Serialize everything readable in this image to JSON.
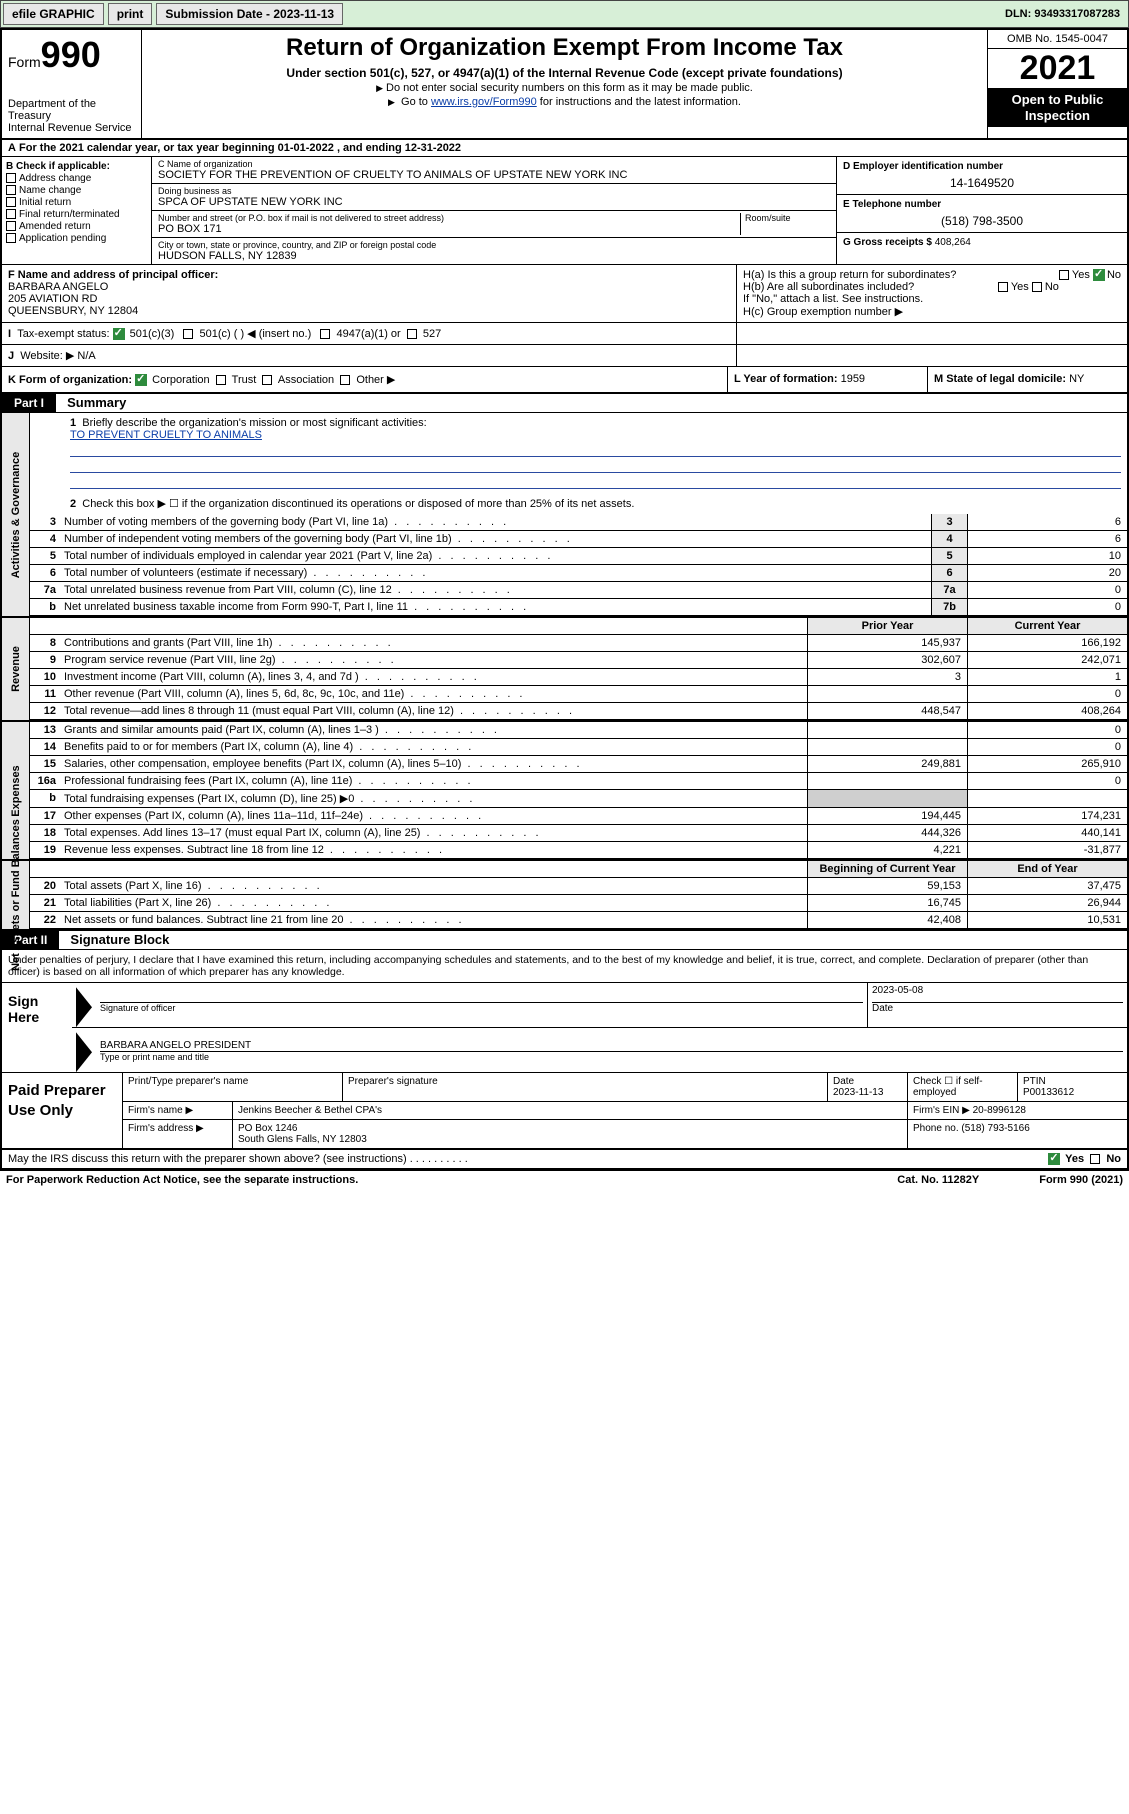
{
  "topbar": {
    "efile": "efile GRAPHIC",
    "print": "print",
    "submission_label": "Submission Date - 2023-11-13",
    "dln": "DLN: 93493317087283"
  },
  "header": {
    "form_label": "Form",
    "form_number": "990",
    "title": "Return of Organization Exempt From Income Tax",
    "subtitle": "Under section 501(c), 527, or 4947(a)(1) of the Internal Revenue Code (except private foundations)",
    "note1": "Do not enter social security numbers on this form as it may be made public.",
    "note2_pre": "Go to ",
    "note2_link": "www.irs.gov/Form990",
    "note2_post": " for instructions and the latest information.",
    "dept": "Department of the Treasury",
    "irs": "Internal Revenue Service",
    "omb": "OMB No. 1545-0047",
    "year": "2021",
    "open_public": "Open to Public Inspection"
  },
  "rowA": "For the 2021 calendar year, or tax year beginning 01-01-2022   , and ending 12-31-2022",
  "sectionB": {
    "label": "B Check if applicable:",
    "items": [
      "Address change",
      "Name change",
      "Initial return",
      "Final return/terminated",
      "Amended return",
      "Application pending"
    ]
  },
  "sectionC": {
    "name_lbl": "C Name of organization",
    "name": "SOCIETY FOR THE PREVENTION OF CRUELTY TO ANIMALS OF UPSTATE NEW YORK INC",
    "dba_lbl": "Doing business as",
    "dba": "SPCA OF UPSTATE NEW YORK INC",
    "street_lbl": "Number and street (or P.O. box if mail is not delivered to street address)",
    "room_lbl": "Room/suite",
    "street": "PO BOX 171",
    "city_lbl": "City or town, state or province, country, and ZIP or foreign postal code",
    "city": "HUDSON FALLS, NY  12839"
  },
  "sectionD": {
    "lbl": "D Employer identification number",
    "val": "14-1649520"
  },
  "sectionE": {
    "lbl": "E Telephone number",
    "val": "(518) 798-3500"
  },
  "sectionG": {
    "lbl": "G Gross receipts $",
    "val": "408,264"
  },
  "sectionF": {
    "lbl": "F Name and address of principal officer:",
    "name": "BARBARA ANGELO",
    "street": "205 AVIATION RD",
    "city": "QUEENSBURY, NY  12804"
  },
  "sectionH": {
    "a": "H(a)  Is this a group return for subordinates?",
    "b": "H(b)  Are all subordinates included?",
    "note": "If \"No,\" attach a list. See instructions.",
    "c": "H(c)  Group exemption number ▶",
    "yes": "Yes",
    "no": "No"
  },
  "rowI": {
    "lbl": "Tax-exempt status:",
    "opts": [
      "501(c)(3)",
      "501(c) (   ) ◀ (insert no.)",
      "4947(a)(1) or",
      "527"
    ]
  },
  "rowJ": {
    "lbl": "Website: ▶",
    "val": "N/A"
  },
  "rowK": {
    "lbl": "K Form of organization:",
    "opts": [
      "Corporation",
      "Trust",
      "Association",
      "Other ▶"
    ]
  },
  "rowL": {
    "lbl": "L Year of formation:",
    "val": "1959"
  },
  "rowM": {
    "lbl": "M State of legal domicile:",
    "val": "NY"
  },
  "part1": {
    "hdr": "Part I",
    "title": "Summary",
    "q1": "Briefly describe the organization's mission or most significant activities:",
    "q1_ans": "TO PREVENT CRUELTY TO ANIMALS",
    "q2": "Check this box ▶ ☐  if the organization discontinued its operations or disposed of more than 25% of its net assets."
  },
  "side_labels": {
    "gov": "Activities & Governance",
    "rev": "Revenue",
    "exp": "Expenses",
    "net": "Net Assets or Fund Balances"
  },
  "table": {
    "prior_hdr": "Prior Year",
    "current_hdr": "Current Year",
    "begin_hdr": "Beginning of Current Year",
    "end_hdr": "End of Year",
    "rows_gov": [
      {
        "n": "3",
        "d": "Number of voting members of the governing body (Part VI, line 1a)",
        "box": "3",
        "v": "6"
      },
      {
        "n": "4",
        "d": "Number of independent voting members of the governing body (Part VI, line 1b)",
        "box": "4",
        "v": "6"
      },
      {
        "n": "5",
        "d": "Total number of individuals employed in calendar year 2021 (Part V, line 2a)",
        "box": "5",
        "v": "10"
      },
      {
        "n": "6",
        "d": "Total number of volunteers (estimate if necessary)",
        "box": "6",
        "v": "20"
      },
      {
        "n": "7a",
        "d": "Total unrelated business revenue from Part VIII, column (C), line 12",
        "box": "7a",
        "v": "0"
      },
      {
        "n": "b",
        "d": "Net unrelated business taxable income from Form 990-T, Part I, line 11",
        "box": "7b",
        "v": "0"
      }
    ],
    "rows_rev": [
      {
        "n": "8",
        "d": "Contributions and grants (Part VIII, line 1h)",
        "p": "145,937",
        "c": "166,192"
      },
      {
        "n": "9",
        "d": "Program service revenue (Part VIII, line 2g)",
        "p": "302,607",
        "c": "242,071"
      },
      {
        "n": "10",
        "d": "Investment income (Part VIII, column (A), lines 3, 4, and 7d )",
        "p": "3",
        "c": "1"
      },
      {
        "n": "11",
        "d": "Other revenue (Part VIII, column (A), lines 5, 6d, 8c, 9c, 10c, and 11e)",
        "p": "",
        "c": "0"
      },
      {
        "n": "12",
        "d": "Total revenue—add lines 8 through 11 (must equal Part VIII, column (A), line 12)",
        "p": "448,547",
        "c": "408,264"
      }
    ],
    "rows_exp": [
      {
        "n": "13",
        "d": "Grants and similar amounts paid (Part IX, column (A), lines 1–3 )",
        "p": "",
        "c": "0"
      },
      {
        "n": "14",
        "d": "Benefits paid to or for members (Part IX, column (A), line 4)",
        "p": "",
        "c": "0"
      },
      {
        "n": "15",
        "d": "Salaries, other compensation, employee benefits (Part IX, column (A), lines 5–10)",
        "p": "249,881",
        "c": "265,910"
      },
      {
        "n": "16a",
        "d": "Professional fundraising fees (Part IX, column (A), line 11e)",
        "p": "",
        "c": "0"
      },
      {
        "n": "b",
        "d": "Total fundraising expenses (Part IX, column (D), line 25) ▶0",
        "p": "grey",
        "c": "grey"
      },
      {
        "n": "17",
        "d": "Other expenses (Part IX, column (A), lines 11a–11d, 11f–24e)",
        "p": "194,445",
        "c": "174,231"
      },
      {
        "n": "18",
        "d": "Total expenses. Add lines 13–17 (must equal Part IX, column (A), line 25)",
        "p": "444,326",
        "c": "440,141"
      },
      {
        "n": "19",
        "d": "Revenue less expenses. Subtract line 18 from line 12",
        "p": "4,221",
        "c": "-31,877"
      }
    ],
    "rows_net": [
      {
        "n": "20",
        "d": "Total assets (Part X, line 16)",
        "p": "59,153",
        "c": "37,475"
      },
      {
        "n": "21",
        "d": "Total liabilities (Part X, line 26)",
        "p": "16,745",
        "c": "26,944"
      },
      {
        "n": "22",
        "d": "Net assets or fund balances. Subtract line 21 from line 20",
        "p": "42,408",
        "c": "10,531"
      }
    ]
  },
  "part2": {
    "hdr": "Part II",
    "title": "Signature Block",
    "decl": "Under penalties of perjury, I declare that I have examined this return, including accompanying schedules and statements, and to the best of my knowledge and belief, it is true, correct, and complete. Declaration of preparer (other than officer) is based on all information of which preparer has any knowledge."
  },
  "sign": {
    "here": "Sign Here",
    "sig_lbl": "Signature of officer",
    "date_lbl": "Date",
    "date": "2023-05-08",
    "name": "BARBARA ANGELO  PRESIDENT",
    "name_lbl": "Type or print name and title"
  },
  "prep": {
    "title": "Paid Preparer Use Only",
    "h1": "Print/Type preparer's name",
    "h2": "Preparer's signature",
    "h3": "Date",
    "date": "2023-11-13",
    "h4": "Check ☐ if self-employed",
    "h5": "PTIN",
    "ptin": "P00133612",
    "firm_lbl": "Firm's name    ▶",
    "firm": "Jenkins Beecher & Bethel CPA's",
    "ein_lbl": "Firm's EIN ▶",
    "ein": "20-8996128",
    "addr_lbl": "Firm's address ▶",
    "addr1": "PO Box 1246",
    "addr2": "South Glens Falls, NY  12803",
    "phone_lbl": "Phone no.",
    "phone": "(518) 793-5166"
  },
  "footer": {
    "q": "May the IRS discuss this return with the preparer shown above? (see instructions)",
    "yes": "Yes",
    "no": "No",
    "pra": "For Paperwork Reduction Act Notice, see the separate instructions.",
    "cat": "Cat. No. 11282Y",
    "form": "Form 990 (2021)"
  },
  "colors": {
    "topbar_bg": "#d7efd7",
    "grey_bg": "#e8e8e8",
    "grey_cell": "#cfcfcf",
    "link": "#0b3ea8",
    "check_green": "#2e8b3d"
  }
}
